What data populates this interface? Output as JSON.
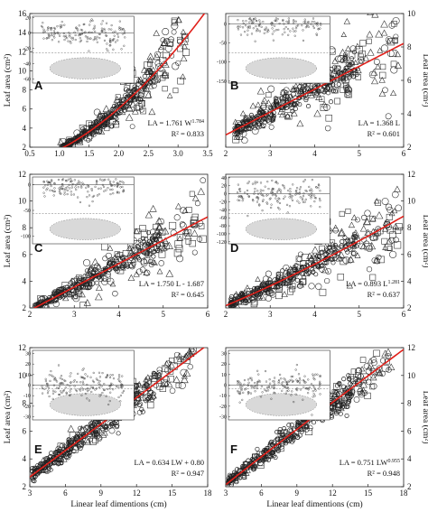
{
  "figure": {
    "x_axis_title": "Linear leaf dimentions (cm)",
    "y_axis_title_html": "Leaf area (cm²)"
  },
  "colors": {
    "fit_line": "#e0201a",
    "marker": "#222222",
    "residual_band": "#d9d9d9"
  },
  "chart_data": [
    {
      "panel": "A",
      "type": "scatter",
      "xlim": [
        0.5,
        3.5
      ],
      "ylim": [
        2,
        16
      ],
      "x_ticks": [
        "0.5",
        "1.0",
        "1.5",
        "2.0",
        "2.5",
        "3.0",
        "3.5"
      ],
      "y_ticks": [
        "2",
        "4",
        "6",
        "8",
        "10",
        "12",
        "14",
        "16"
      ],
      "y_axis_side": "left",
      "equation": "LA = 1.761 W",
      "equation_exp": "1.784",
      "r2": "R² = 0.833",
      "fit": {
        "form": "power",
        "a": 1.761,
        "b": 1.784
      },
      "points_x_range": [
        1.0,
        3.15
      ],
      "inset": {
        "y_ticks": [
          "20",
          "0",
          "-20",
          "-40",
          "-60"
        ],
        "ylim": [
          -65,
          22
        ]
      }
    },
    {
      "panel": "B",
      "type": "scatter",
      "xlim": [
        2,
        6
      ],
      "ylim": [
        2,
        10
      ],
      "x_ticks": [
        "2",
        "3",
        "4",
        "5",
        "6"
      ],
      "y_ticks": [
        "2",
        "4",
        "6",
        "8",
        "10"
      ],
      "y_axis_side": "right",
      "equation": "LA = 1.368 L",
      "equation_exp": "",
      "r2": "R² = 0.601",
      "fit": {
        "form": "linear",
        "a": 1.368,
        "b": 0
      },
      "points_x_range": [
        2.2,
        5.9
      ],
      "inset": {
        "y_ticks": [
          "0",
          "-50",
          "-100",
          "-150"
        ],
        "ylim": [
          -155,
          20
        ]
      }
    },
    {
      "panel": "C",
      "type": "scatter",
      "xlim": [
        2,
        6
      ],
      "ylim": [
        2,
        12
      ],
      "x_ticks": [
        "2",
        "3",
        "4",
        "5",
        "6"
      ],
      "y_ticks": [
        "2",
        "4",
        "6",
        "8",
        "10",
        "12"
      ],
      "y_axis_side": "left",
      "equation": "LA = 1.750 L - 1.687",
      "equation_exp": "",
      "r2": "R² = 0.645",
      "fit": {
        "form": "linear",
        "a": 1.75,
        "b": -1.687
      },
      "points_x_range": [
        2.1,
        5.9
      ],
      "inset": {
        "y_ticks": [
          "0",
          "-50",
          "-100"
        ],
        "ylim": [
          -115,
          15
        ]
      }
    },
    {
      "panel": "D",
      "type": "scatter",
      "xlim": [
        2,
        6
      ],
      "ylim": [
        2,
        12
      ],
      "x_ticks": [
        "2",
        "3",
        "4",
        "5",
        "6"
      ],
      "y_ticks": [
        "2",
        "4",
        "6",
        "8",
        "10",
        "12"
      ],
      "y_axis_side": "right",
      "equation": "LA = 0.893 L",
      "equation_exp": "1.281",
      "r2": "R² = 0.637",
      "fit": {
        "form": "power",
        "a": 0.893,
        "b": 1.281
      },
      "points_x_range": [
        2.1,
        5.9
      ],
      "inset": {
        "y_ticks": [
          "40",
          "20",
          "0",
          "-20",
          "-40",
          "-60",
          "-80",
          "-100",
          "-120"
        ],
        "ylim": [
          -125,
          42
        ]
      }
    },
    {
      "panel": "E",
      "type": "scatter",
      "xlim": [
        3,
        18
      ],
      "ylim": [
        2,
        12
      ],
      "x_ticks": [
        "3",
        "6",
        "9",
        "12",
        "15",
        "18"
      ],
      "y_ticks": [
        "2",
        "4",
        "6",
        "8",
        "10",
        "12"
      ],
      "y_axis_side": "left",
      "equation": "LA = 0.634 LW + 0.80",
      "equation_exp": "",
      "r2": "R² = 0.947",
      "fit": {
        "form": "linear",
        "a": 0.634,
        "b": 0.8
      },
      "points_x_range": [
        3.2,
        17.0
      ],
      "inset": {
        "y_ticks": [
          "30",
          "20",
          "10",
          "0",
          "-10",
          "-20",
          "-30"
        ],
        "ylim": [
          -33,
          33
        ]
      }
    },
    {
      "panel": "F",
      "type": "scatter",
      "xlim": [
        3,
        18
      ],
      "ylim": [
        2,
        12
      ],
      "x_ticks": [
        "3",
        "6",
        "9",
        "12",
        "15",
        "18"
      ],
      "y_ticks": [
        "2",
        "4",
        "6",
        "8",
        "10",
        "12"
      ],
      "y_axis_side": "right",
      "equation": "LA = 0.751 LW",
      "equation_exp": "0.955",
      "r2": "R² = 0.948",
      "fit": {
        "form": "power",
        "a": 0.751,
        "b": 0.955
      },
      "points_x_range": [
        3.2,
        17.0
      ],
      "inset": {
        "y_ticks": [
          "30",
          "20",
          "10",
          "0",
          "-10",
          "-20",
          "-30"
        ],
        "ylim": [
          -33,
          33
        ]
      }
    }
  ]
}
